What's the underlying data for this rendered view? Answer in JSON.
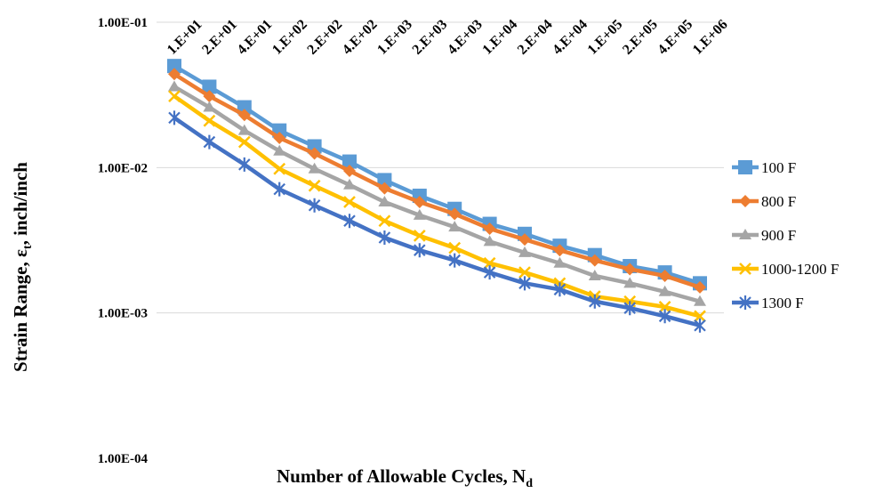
{
  "chart_data": {
    "type": "line",
    "y_scale": "log",
    "ylim": [
      0.0001,
      0.1
    ],
    "yticks": [
      "1.00E-04",
      "1.00E-03",
      "1.00E-02",
      "1.00E-01"
    ],
    "categories": [
      "1.E+01",
      "2.E+01",
      "4.E+01",
      "1.E+02",
      "2.E+02",
      "4.E+02",
      "1.E+03",
      "2.E+03",
      "4.E+03",
      "1.E+04",
      "2.E+04",
      "4.E+04",
      "1.E+05",
      "2.E+05",
      "4.E+05",
      "1.E+06"
    ],
    "xlabel_main": "Number of Allowable Cycles, N",
    "xlabel_sub": "d",
    "ylabel_main": "Strain Range, ε",
    "ylabel_sub": "t",
    "ylabel_unit": ", inch/inch",
    "grid": true,
    "legend_position": "right",
    "series": [
      {
        "name": "100 F",
        "color": "#5b9bd5",
        "marker": "square",
        "values": [
          0.05,
          0.036,
          0.026,
          0.018,
          0.014,
          0.011,
          0.0082,
          0.0064,
          0.0052,
          0.0041,
          0.0035,
          0.0029,
          0.0025,
          0.0021,
          0.0019,
          0.0016
        ]
      },
      {
        "name": "800 F",
        "color": "#ed7d31",
        "marker": "diamond",
        "values": [
          0.044,
          0.031,
          0.023,
          0.016,
          0.0125,
          0.0095,
          0.0072,
          0.0058,
          0.0048,
          0.0038,
          0.0032,
          0.0027,
          0.0023,
          0.002,
          0.0018,
          0.0015
        ]
      },
      {
        "name": "900 F",
        "color": "#a5a5a5",
        "marker": "triangle",
        "values": [
          0.036,
          0.026,
          0.018,
          0.013,
          0.0098,
          0.0076,
          0.0058,
          0.0047,
          0.0039,
          0.0031,
          0.0026,
          0.0022,
          0.0018,
          0.0016,
          0.0014,
          0.0012
        ]
      },
      {
        "name": "1000-1200 F",
        "color": "#ffc000",
        "marker": "x",
        "values": [
          0.031,
          0.021,
          0.015,
          0.0098,
          0.0075,
          0.0058,
          0.0043,
          0.0034,
          0.0028,
          0.0022,
          0.0019,
          0.0016,
          0.0013,
          0.0012,
          0.0011,
          0.00095
        ]
      },
      {
        "name": "1300 F",
        "color": "#4472c4",
        "marker": "star",
        "values": [
          0.022,
          0.015,
          0.0105,
          0.0071,
          0.0055,
          0.0043,
          0.0033,
          0.0027,
          0.0023,
          0.0019,
          0.0016,
          0.00145,
          0.0012,
          0.00108,
          0.00095,
          0.00082
        ]
      }
    ]
  }
}
